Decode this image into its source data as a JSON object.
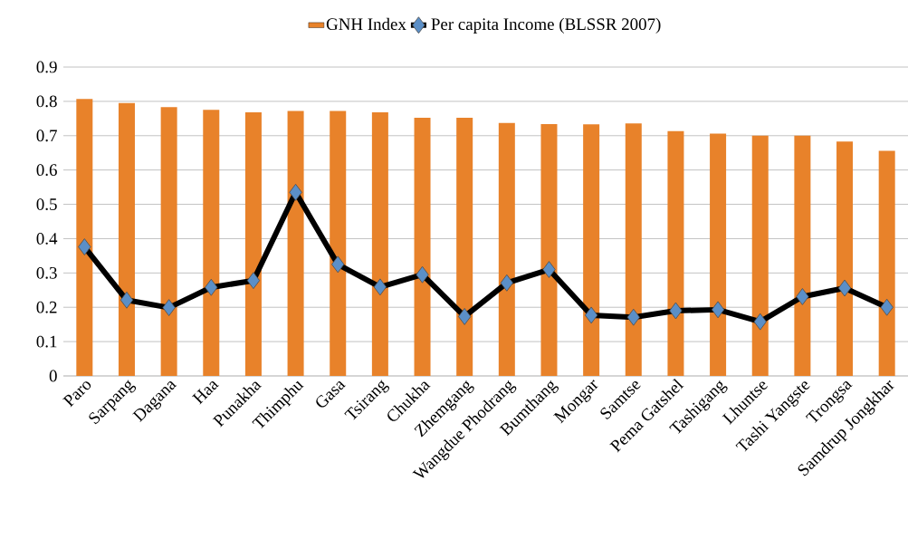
{
  "chart_data": {
    "type": "bar",
    "categories": [
      "Paro",
      "Sarpang",
      "Dagana",
      "Haa",
      "Punakha",
      "Thimphu",
      "Gasa",
      "Tsirang",
      "Chukha",
      "Zhemgang",
      "Wangdue Phodrang",
      "Bumthang",
      "Mongar",
      "Samtse",
      "Pema Gatshel",
      "Tashigang",
      "Lhuntse",
      "Tashi Yangste",
      "Trongsa",
      "Samdrup Jongkhar"
    ],
    "series": [
      {
        "name": "GNH Index",
        "color": "#e8822a",
        "values": [
          0.807,
          0.795,
          0.783,
          0.775,
          0.768,
          0.772,
          0.772,
          0.768,
          0.752,
          0.752,
          0.737,
          0.734,
          0.733,
          0.736,
          0.713,
          0.706,
          0.7,
          0.7,
          0.683,
          0.656
        ]
      },
      {
        "name": "Per capita Income (BLSSR 2007)",
        "type": "line",
        "color": "#5b8fc7",
        "marker": "diamond",
        "values": [
          0.376,
          0.221,
          0.199,
          0.258,
          0.278,
          0.535,
          0.325,
          0.259,
          0.295,
          0.173,
          0.271,
          0.31,
          0.177,
          0.171,
          0.19,
          0.193,
          0.158,
          0.231,
          0.256,
          0.2
        ]
      }
    ],
    "ylim": [
      0,
      0.9
    ],
    "yticks": [
      0,
      0.1,
      0.2,
      0.3,
      0.4,
      0.5,
      0.6,
      0.7,
      0.8,
      0.9
    ],
    "grid": "y",
    "legend": "top"
  }
}
